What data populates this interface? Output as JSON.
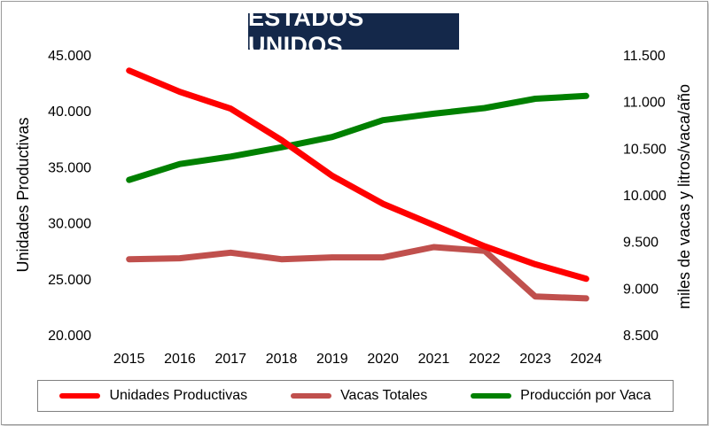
{
  "chart_data": {
    "type": "line",
    "title": "ESTADOS UNIDOS",
    "x": [
      "2015",
      "2016",
      "2017",
      "2018",
      "2019",
      "2020",
      "2021",
      "2022",
      "2023",
      "2024"
    ],
    "ylabel_left": "Unidades Productivas",
    "ylabel_right": "miles de vacas y litros/vaca/año",
    "yticks_left": [
      "45.000",
      "40.000",
      "35.000",
      "30.000",
      "25.000",
      "20.000"
    ],
    "yticks_right": [
      "11.500",
      "11.000",
      "10.500",
      "10.000",
      "9.500",
      "9.000",
      "8.500"
    ],
    "ylim_left": [
      20000,
      45000
    ],
    "ylim_right": [
      8500,
      11500
    ],
    "grid": false,
    "legend_position": "bottom",
    "series": [
      {
        "name": "Unidades Productivas",
        "axis": "left",
        "color": "#ff0000",
        "values": [
          43600,
          41700,
          40200,
          37400,
          34200,
          31700,
          29800,
          27900,
          26300,
          25000
        ]
      },
      {
        "name": "Vacas Totales",
        "axis": "right",
        "color": "#c0504d",
        "values": [
          9310,
          9320,
          9380,
          9310,
          9330,
          9330,
          9440,
          9400,
          8910,
          8890
        ]
      },
      {
        "name": "Producción por Vaca",
        "axis": "right",
        "color": "#008000",
        "values": [
          10160,
          10330,
          10410,
          10510,
          10620,
          10800,
          10870,
          10930,
          11030,
          11060
        ]
      }
    ]
  }
}
